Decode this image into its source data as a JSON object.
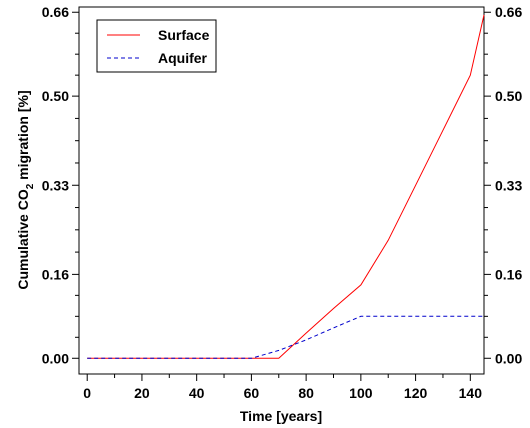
{
  "chart_data": {
    "type": "line",
    "title": "",
    "xlabel": "Time [years]",
    "ylabel": {
      "prefix": "Cumulative CO",
      "subscript": "2",
      "suffix": " migration [%]"
    },
    "xlim": [
      -3,
      145
    ],
    "ylim": [
      -0.03,
      0.67
    ],
    "x_ticks": [
      0,
      20,
      40,
      60,
      80,
      100,
      120,
      140
    ],
    "x_tick_labels": [
      "0",
      "20",
      "40",
      "60",
      "80",
      "100",
      "120",
      "140"
    ],
    "y_ticks": [
      0.0,
      0.16,
      0.33,
      0.5,
      0.66
    ],
    "y_tick_labels": [
      "0.00",
      "0.16",
      "0.33",
      "0.50",
      "0.66"
    ],
    "right_y_tick_labels": [
      "0.00",
      "0.16",
      "0.33",
      "0.50",
      "0.66"
    ],
    "grid": false,
    "legend_position": "top-left",
    "series": [
      {
        "name": "Surface",
        "color": "#ff0000",
        "style": "solid",
        "x": [
          0,
          20,
          40,
          60,
          70,
          80,
          90,
          100,
          110,
          120,
          130,
          140,
          145
        ],
        "y": [
          0.0,
          0.0,
          0.0,
          0.0,
          0.0,
          0.048,
          0.095,
          0.14,
          0.225,
          0.33,
          0.435,
          0.54,
          0.655
        ]
      },
      {
        "name": "Aquifer",
        "color": "#0000cc",
        "style": "dashed",
        "x": [
          0,
          20,
          40,
          60,
          70,
          80,
          90,
          100,
          110,
          120,
          130,
          140,
          145
        ],
        "y": [
          0.0,
          0.0,
          0.0,
          0.0,
          0.015,
          0.035,
          0.058,
          0.08,
          0.08,
          0.08,
          0.08,
          0.08,
          0.08
        ]
      }
    ]
  }
}
